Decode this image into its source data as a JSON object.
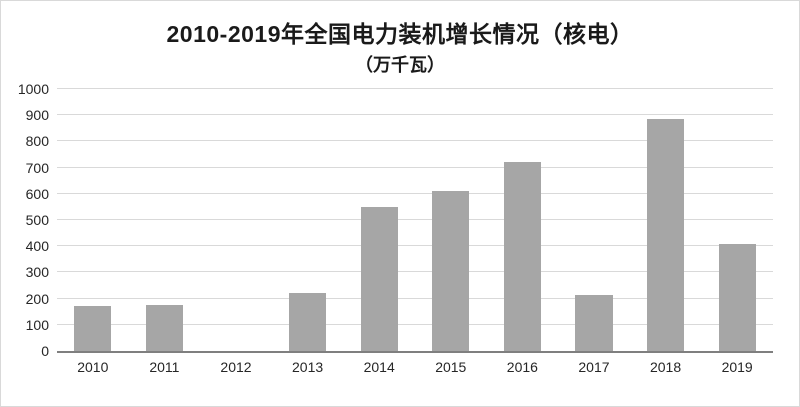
{
  "header": {
    "title": "2010-2019年全国电力装机增长情况（核电）",
    "subtitle": "（万千瓦）"
  },
  "chart_data": {
    "type": "bar",
    "title": "2010-2019年全国电力装机增长情况（核电）",
    "subtitle": "（万千瓦）",
    "categories": [
      "2010",
      "2011",
      "2012",
      "2013",
      "2014",
      "2015",
      "2016",
      "2017",
      "2018",
      "2019"
    ],
    "values": [
      170,
      175,
      0,
      220,
      550,
      610,
      720,
      215,
      884,
      410
    ],
    "xlabel": "",
    "ylabel": "",
    "ylim": [
      0,
      1000
    ],
    "yticks": [
      0,
      100,
      200,
      300,
      400,
      500,
      600,
      700,
      800,
      900,
      1000
    ],
    "grid": true,
    "legend": "none",
    "bar_color": "#a6a6a6",
    "gridline_color": "#d9d9d9",
    "axis_color": "#7f7f7f"
  }
}
